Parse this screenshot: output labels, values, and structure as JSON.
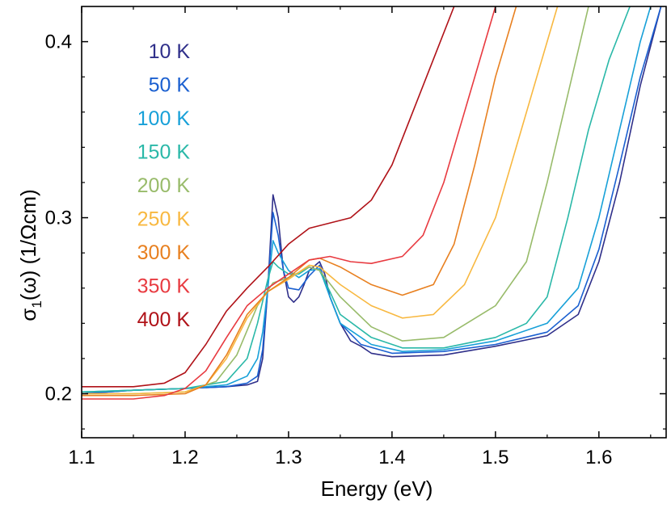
{
  "chart_data": {
    "type": "line",
    "title": "",
    "xlabel": "Energy (eV)",
    "ylabel": {
      "pre": "σ",
      "sub": "1",
      "post": "(ω) (1/Ωcm)"
    },
    "xlim": [
      1.1,
      1.665
    ],
    "ylim": [
      0.175,
      0.42
    ],
    "x_ticks": [
      "1.1",
      "1.2",
      "1.3",
      "1.4",
      "1.5",
      "1.6"
    ],
    "y_ticks": [
      "0.2",
      "0.3",
      "0.4"
    ],
    "legend_position": "top-left",
    "grid": false,
    "series": [
      {
        "name": "10 K",
        "color": "#2f2f8a",
        "points": [
          [
            1.1,
            0.2
          ],
          [
            1.15,
            0.202
          ],
          [
            1.2,
            0.203
          ],
          [
            1.24,
            0.204
          ],
          [
            1.26,
            0.205
          ],
          [
            1.27,
            0.207
          ],
          [
            1.275,
            0.22
          ],
          [
            1.28,
            0.26
          ],
          [
            1.285,
            0.313
          ],
          [
            1.29,
            0.3
          ],
          [
            1.295,
            0.27
          ],
          [
            1.3,
            0.255
          ],
          [
            1.305,
            0.252
          ],
          [
            1.31,
            0.255
          ],
          [
            1.315,
            0.262
          ],
          [
            1.32,
            0.27
          ],
          [
            1.33,
            0.275
          ],
          [
            1.335,
            0.268
          ],
          [
            1.34,
            0.255
          ],
          [
            1.35,
            0.24
          ],
          [
            1.36,
            0.23
          ],
          [
            1.37,
            0.227
          ],
          [
            1.38,
            0.223
          ],
          [
            1.4,
            0.221
          ],
          [
            1.45,
            0.222
          ],
          [
            1.5,
            0.227
          ],
          [
            1.55,
            0.233
          ],
          [
            1.58,
            0.245
          ],
          [
            1.6,
            0.275
          ],
          [
            1.62,
            0.32
          ],
          [
            1.64,
            0.375
          ],
          [
            1.66,
            0.42
          ]
        ]
      },
      {
        "name": "50 K",
        "color": "#1a5fd0",
        "points": [
          [
            1.1,
            0.2
          ],
          [
            1.15,
            0.202
          ],
          [
            1.2,
            0.203
          ],
          [
            1.24,
            0.204
          ],
          [
            1.26,
            0.206
          ],
          [
            1.27,
            0.21
          ],
          [
            1.275,
            0.225
          ],
          [
            1.28,
            0.26
          ],
          [
            1.285,
            0.303
          ],
          [
            1.29,
            0.29
          ],
          [
            1.295,
            0.27
          ],
          [
            1.3,
            0.26
          ],
          [
            1.31,
            0.259
          ],
          [
            1.32,
            0.267
          ],
          [
            1.33,
            0.273
          ],
          [
            1.34,
            0.255
          ],
          [
            1.35,
            0.24
          ],
          [
            1.37,
            0.228
          ],
          [
            1.4,
            0.223
          ],
          [
            1.45,
            0.224
          ],
          [
            1.5,
            0.228
          ],
          [
            1.55,
            0.235
          ],
          [
            1.58,
            0.25
          ],
          [
            1.6,
            0.282
          ],
          [
            1.62,
            0.33
          ],
          [
            1.64,
            0.38
          ],
          [
            1.66,
            0.42
          ]
        ]
      },
      {
        "name": "100 K",
        "color": "#17a0d8",
        "points": [
          [
            1.1,
            0.201
          ],
          [
            1.15,
            0.202
          ],
          [
            1.2,
            0.203
          ],
          [
            1.24,
            0.205
          ],
          [
            1.26,
            0.21
          ],
          [
            1.27,
            0.22
          ],
          [
            1.275,
            0.235
          ],
          [
            1.28,
            0.26
          ],
          [
            1.285,
            0.287
          ],
          [
            1.29,
            0.28
          ],
          [
            1.3,
            0.27
          ],
          [
            1.31,
            0.266
          ],
          [
            1.32,
            0.27
          ],
          [
            1.33,
            0.271
          ],
          [
            1.34,
            0.255
          ],
          [
            1.35,
            0.24
          ],
          [
            1.38,
            0.228
          ],
          [
            1.41,
            0.224
          ],
          [
            1.45,
            0.225
          ],
          [
            1.5,
            0.23
          ],
          [
            1.55,
            0.24
          ],
          [
            1.58,
            0.26
          ],
          [
            1.6,
            0.3
          ],
          [
            1.62,
            0.35
          ],
          [
            1.64,
            0.4
          ],
          [
            1.65,
            0.42
          ]
        ]
      },
      {
        "name": "150 K",
        "color": "#2ab8a8",
        "points": [
          [
            1.1,
            0.201
          ],
          [
            1.15,
            0.202
          ],
          [
            1.2,
            0.203
          ],
          [
            1.24,
            0.207
          ],
          [
            1.26,
            0.22
          ],
          [
            1.27,
            0.24
          ],
          [
            1.28,
            0.265
          ],
          [
            1.285,
            0.275
          ],
          [
            1.29,
            0.272
          ],
          [
            1.3,
            0.268
          ],
          [
            1.31,
            0.268
          ],
          [
            1.32,
            0.272
          ],
          [
            1.33,
            0.27
          ],
          [
            1.34,
            0.258
          ],
          [
            1.35,
            0.245
          ],
          [
            1.38,
            0.232
          ],
          [
            1.41,
            0.226
          ],
          [
            1.45,
            0.226
          ],
          [
            1.5,
            0.232
          ],
          [
            1.53,
            0.24
          ],
          [
            1.55,
            0.255
          ],
          [
            1.57,
            0.3
          ],
          [
            1.59,
            0.35
          ],
          [
            1.61,
            0.39
          ],
          [
            1.63,
            0.42
          ]
        ]
      },
      {
        "name": "200 K",
        "color": "#98bb6a",
        "points": [
          [
            1.1,
            0.2
          ],
          [
            1.15,
            0.2
          ],
          [
            1.2,
            0.201
          ],
          [
            1.23,
            0.207
          ],
          [
            1.25,
            0.222
          ],
          [
            1.27,
            0.25
          ],
          [
            1.285,
            0.263
          ],
          [
            1.3,
            0.266
          ],
          [
            1.32,
            0.272
          ],
          [
            1.33,
            0.27
          ],
          [
            1.35,
            0.255
          ],
          [
            1.38,
            0.238
          ],
          [
            1.41,
            0.23
          ],
          [
            1.45,
            0.232
          ],
          [
            1.5,
            0.25
          ],
          [
            1.53,
            0.275
          ],
          [
            1.55,
            0.32
          ],
          [
            1.57,
            0.37
          ],
          [
            1.59,
            0.42
          ]
        ]
      },
      {
        "name": "250 K",
        "color": "#f8b840",
        "points": [
          [
            1.1,
            0.2
          ],
          [
            1.15,
            0.2
          ],
          [
            1.2,
            0.201
          ],
          [
            1.22,
            0.205
          ],
          [
            1.24,
            0.22
          ],
          [
            1.26,
            0.243
          ],
          [
            1.28,
            0.258
          ],
          [
            1.3,
            0.265
          ],
          [
            1.32,
            0.273
          ],
          [
            1.33,
            0.272
          ],
          [
            1.35,
            0.262
          ],
          [
            1.38,
            0.25
          ],
          [
            1.41,
            0.243
          ],
          [
            1.44,
            0.245
          ],
          [
            1.47,
            0.262
          ],
          [
            1.5,
            0.3
          ],
          [
            1.52,
            0.34
          ],
          [
            1.54,
            0.38
          ],
          [
            1.56,
            0.42
          ]
        ]
      },
      {
        "name": "300 K",
        "color": "#e88020",
        "points": [
          [
            1.1,
            0.199
          ],
          [
            1.15,
            0.199
          ],
          [
            1.2,
            0.2
          ],
          [
            1.22,
            0.205
          ],
          [
            1.24,
            0.222
          ],
          [
            1.26,
            0.245
          ],
          [
            1.28,
            0.258
          ],
          [
            1.3,
            0.266
          ],
          [
            1.32,
            0.276
          ],
          [
            1.33,
            0.277
          ],
          [
            1.35,
            0.272
          ],
          [
            1.38,
            0.262
          ],
          [
            1.41,
            0.256
          ],
          [
            1.44,
            0.262
          ],
          [
            1.46,
            0.285
          ],
          [
            1.48,
            0.33
          ],
          [
            1.5,
            0.38
          ],
          [
            1.52,
            0.42
          ]
        ]
      },
      {
        "name": "350 K",
        "color": "#e83a40",
        "points": [
          [
            1.1,
            0.197
          ],
          [
            1.15,
            0.197
          ],
          [
            1.18,
            0.199
          ],
          [
            1.2,
            0.203
          ],
          [
            1.22,
            0.213
          ],
          [
            1.24,
            0.232
          ],
          [
            1.26,
            0.25
          ],
          [
            1.28,
            0.26
          ],
          [
            1.3,
            0.268
          ],
          [
            1.32,
            0.276
          ],
          [
            1.34,
            0.278
          ],
          [
            1.36,
            0.275
          ],
          [
            1.38,
            0.274
          ],
          [
            1.41,
            0.278
          ],
          [
            1.43,
            0.29
          ],
          [
            1.45,
            0.32
          ],
          [
            1.47,
            0.36
          ],
          [
            1.49,
            0.4
          ],
          [
            1.5,
            0.42
          ]
        ]
      },
      {
        "name": "400 K",
        "color": "#b01218",
        "points": [
          [
            1.1,
            0.204
          ],
          [
            1.15,
            0.204
          ],
          [
            1.18,
            0.206
          ],
          [
            1.2,
            0.212
          ],
          [
            1.22,
            0.228
          ],
          [
            1.24,
            0.247
          ],
          [
            1.26,
            0.26
          ],
          [
            1.28,
            0.272
          ],
          [
            1.3,
            0.285
          ],
          [
            1.32,
            0.294
          ],
          [
            1.34,
            0.297
          ],
          [
            1.36,
            0.3
          ],
          [
            1.38,
            0.31
          ],
          [
            1.4,
            0.33
          ],
          [
            1.42,
            0.36
          ],
          [
            1.44,
            0.39
          ],
          [
            1.46,
            0.42
          ]
        ]
      }
    ]
  }
}
